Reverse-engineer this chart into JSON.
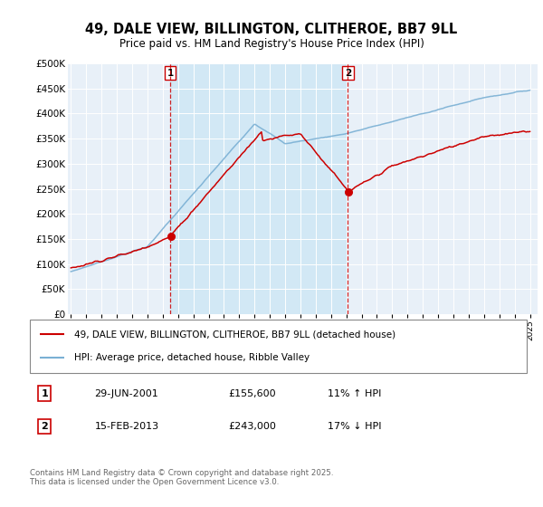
{
  "title": "49, DALE VIEW, BILLINGTON, CLITHEROE, BB7 9LL",
  "subtitle": "Price paid vs. HM Land Registry's House Price Index (HPI)",
  "hpi_color": "#7ab0d4",
  "price_color": "#cc0000",
  "vline_color": "#cc0000",
  "shade_color": "#d0e8f5",
  "plot_bg": "#e8f0f8",
  "grid_color": "#ffffff",
  "ylim": [
    0,
    500000
  ],
  "yticks": [
    0,
    50000,
    100000,
    150000,
    200000,
    250000,
    300000,
    350000,
    400000,
    450000,
    500000
  ],
  "year_start": 1995,
  "year_end": 2025,
  "marker1_year": 2001.5,
  "marker1_price_val": 155600,
  "marker2_year": 2013.1,
  "marker2_price_val": 243000,
  "marker1_label": "1",
  "marker1_date": "29-JUN-2001",
  "marker1_price": "£155,600",
  "marker1_hpi": "11% ↑ HPI",
  "marker2_label": "2",
  "marker2_date": "15-FEB-2013",
  "marker2_price": "£243,000",
  "marker2_hpi": "17% ↓ HPI",
  "legend_line1": "49, DALE VIEW, BILLINGTON, CLITHEROE, BB7 9LL (detached house)",
  "legend_line2": "HPI: Average price, detached house, Ribble Valley",
  "footer": "Contains HM Land Registry data © Crown copyright and database right 2025.\nThis data is licensed under the Open Government Licence v3.0."
}
